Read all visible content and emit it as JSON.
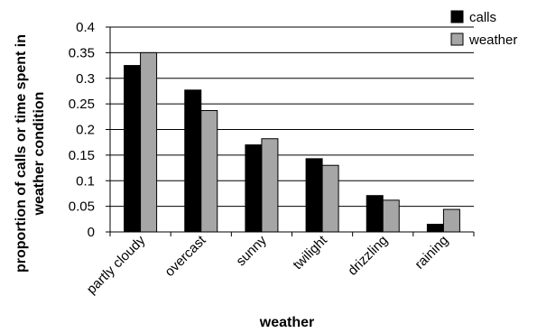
{
  "chart_data": {
    "type": "bar",
    "title": "",
    "xlabel": "weather",
    "ylabel": "proportion of calls or time spent in weather condition",
    "ylim": [
      0,
      0.4
    ],
    "yticks": [
      "0",
      "0.05",
      "0.1",
      "0.15",
      "0.2",
      "0.25",
      "0.3",
      "0.35",
      "0.4"
    ],
    "grid": "horizontal major gridlines",
    "legend_position": "top-right",
    "categories": [
      "partly cloudy",
      "overcast",
      "sunny",
      "twilight",
      "drizzling",
      "raining"
    ],
    "series": [
      {
        "name": "calls",
        "color": "#000000",
        "values": [
          0.325,
          0.277,
          0.17,
          0.143,
          0.071,
          0.015
        ]
      },
      {
        "name": "weather",
        "color": "#a6a6a6",
        "values": [
          0.35,
          0.237,
          0.182,
          0.13,
          0.062,
          0.044
        ]
      }
    ]
  }
}
